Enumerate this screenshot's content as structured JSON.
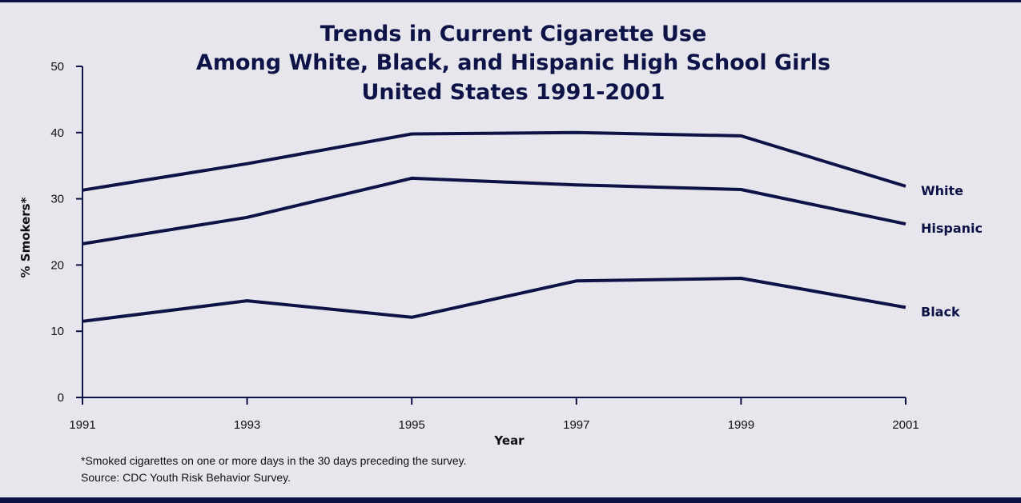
{
  "colors": {
    "background": "#e6e6ec",
    "ink": "#0d1247",
    "text": "#111111"
  },
  "chart_data": {
    "type": "line",
    "title_lines": [
      "Trends in Current Cigarette Use",
      "Among White, Black, and Hispanic High School Girls",
      "United States 1991-2001"
    ],
    "xlabel": "Year",
    "ylabel": "% Smokers*",
    "x": [
      1991,
      1993,
      1995,
      1997,
      1999,
      2001
    ],
    "xticks": [
      "1991",
      "1993",
      "1995",
      "1997",
      "1999",
      "2001"
    ],
    "yticks": [
      "0",
      "10",
      "20",
      "30",
      "40",
      "50"
    ],
    "ylim": [
      0,
      50
    ],
    "grid": false,
    "legend": "inline-right",
    "series": [
      {
        "name": "White",
        "values": [
          31.3,
          35.3,
          39.8,
          40.0,
          39.5,
          31.9
        ]
      },
      {
        "name": "Hispanic",
        "values": [
          23.2,
          27.2,
          33.1,
          32.1,
          31.4,
          26.2
        ]
      },
      {
        "name": "Black",
        "values": [
          11.5,
          14.6,
          12.1,
          17.6,
          18.0,
          13.6
        ]
      }
    ]
  },
  "footnotes": [
    "*Smoked cigarettes on one or more days in the 30 days preceding the survey.",
    "Source: CDC Youth Risk Behavior Survey."
  ]
}
